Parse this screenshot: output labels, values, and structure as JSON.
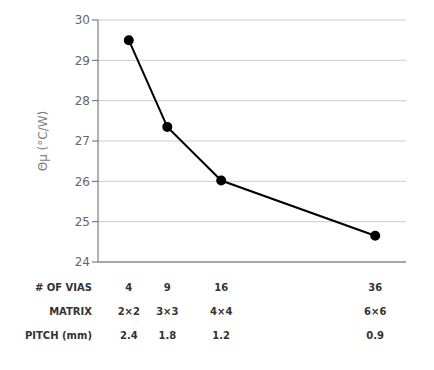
{
  "chart_data": {
    "type": "line",
    "x": [
      4,
      9,
      16,
      36
    ],
    "values": [
      29.5,
      27.35,
      26.02,
      24.65
    ],
    "color": "#000000",
    "marker": "circle",
    "xlim": [
      0,
      40
    ],
    "ylim": [
      24,
      30
    ],
    "yticks": [
      24,
      25,
      26,
      27,
      28,
      29,
      30
    ],
    "ylabel": "Θμ (°C/W)",
    "grid": true,
    "tick_labels": "y",
    "table": [
      {
        "label": "# OF VIAS",
        "values": [
          "4",
          "9",
          "16",
          "36"
        ]
      },
      {
        "label": "MATRIX",
        "values": [
          "2×2",
          "3×3",
          "4×4",
          "6×6"
        ]
      },
      {
        "label": "PITCH (mm)",
        "values": [
          "2.4",
          "1.8",
          "1.2",
          "0.9"
        ]
      }
    ]
  }
}
